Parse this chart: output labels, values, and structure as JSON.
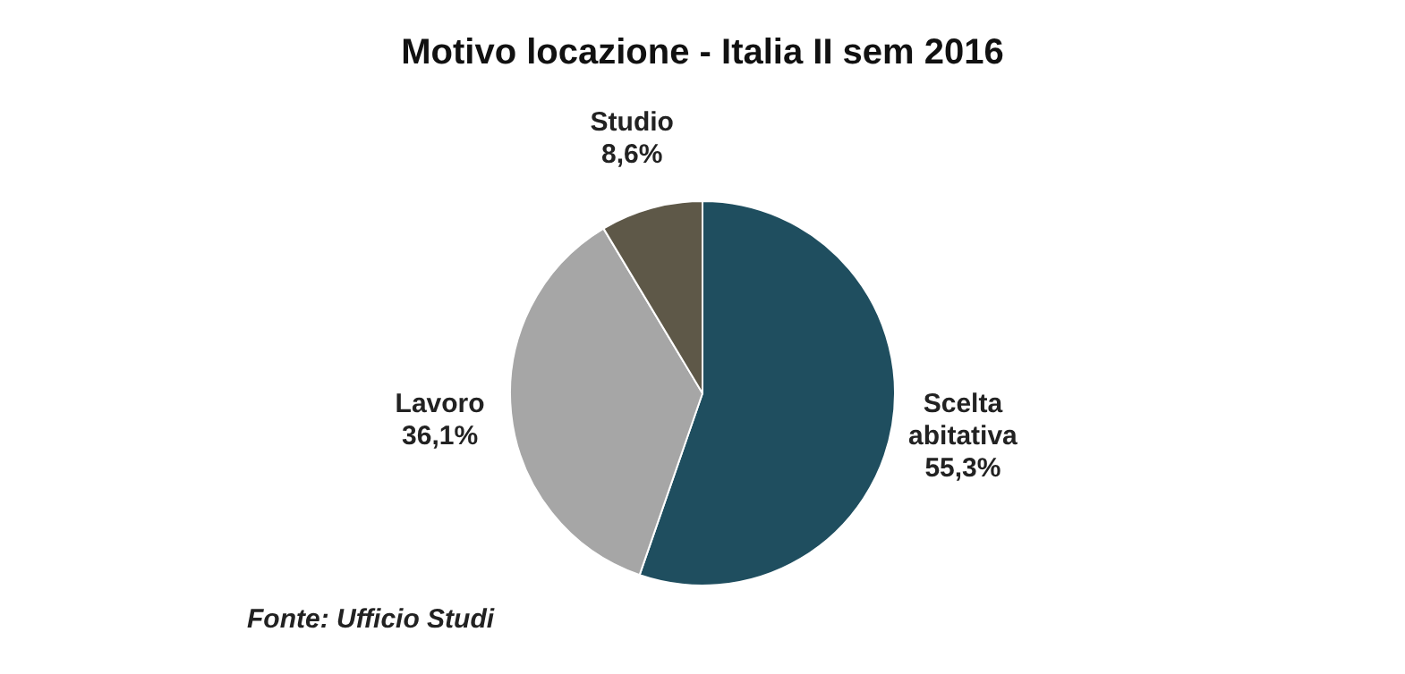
{
  "chart_data": {
    "type": "pie",
    "title": "Motivo locazione - Italia II sem 2016",
    "categories": [
      "Scelta abitativa",
      "Lavoro",
      "Studio"
    ],
    "values": [
      55.3,
      36.1,
      8.6
    ],
    "value_labels": [
      "55,3%",
      "36,1%",
      "8,6%"
    ],
    "colors": [
      "#1f4e5f",
      "#a6a6a6",
      "#5e5848"
    ],
    "legend": false,
    "annotations": [
      "Fonte: Ufficio Studi"
    ]
  }
}
